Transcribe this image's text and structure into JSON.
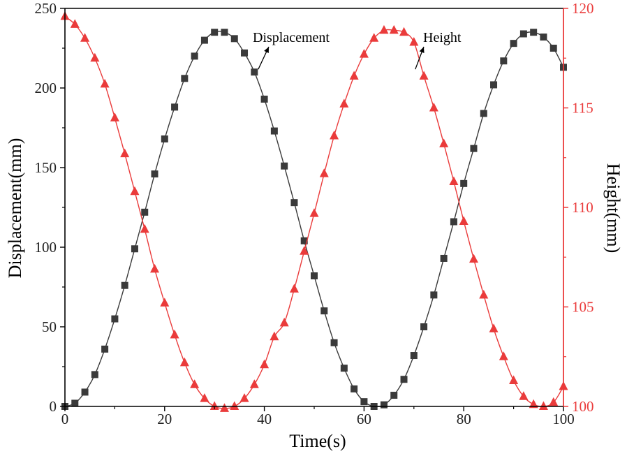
{
  "chart_data": {
    "type": "line",
    "xlabel": "Time(s)",
    "ylabel_left": "Displacement(mm)",
    "ylabel_right": "Height(mm)",
    "xlim": [
      0,
      100
    ],
    "ylim_left": [
      0,
      250
    ],
    "ylim_right": [
      100,
      120
    ],
    "xticks": [
      0,
      20,
      40,
      60,
      80,
      100
    ],
    "yticks_left": [
      0,
      50,
      100,
      150,
      200,
      250
    ],
    "yticks_right": [
      100,
      105,
      110,
      115,
      120
    ],
    "grid": false,
    "annotations": [
      {
        "text": "Displacement",
        "arrow_to": {
          "x": 38.5,
          "y": 210
        }
      },
      {
        "text": "Height",
        "arrow_to_right_axis": {
          "x": 70,
          "y": 116.8
        }
      }
    ],
    "series": [
      {
        "name": "Displacement",
        "axis": "left",
        "color": "#3a3a3a",
        "marker": "square",
        "x": [
          0,
          2,
          4,
          6,
          8,
          10,
          12,
          14,
          16,
          18,
          20,
          22,
          24,
          26,
          28,
          30,
          32,
          34,
          36,
          38,
          40,
          42,
          44,
          46,
          48,
          50,
          52,
          54,
          56,
          58,
          60,
          62,
          64,
          66,
          68,
          70,
          72,
          74,
          76,
          78,
          80,
          82,
          84,
          86,
          88,
          90,
          92,
          94,
          96,
          98,
          100
        ],
        "values": [
          0,
          2,
          9,
          20,
          36,
          55,
          76,
          99,
          122,
          146,
          168,
          188,
          206,
          220,
          230,
          235,
          235,
          231,
          222,
          210,
          193,
          173,
          151,
          128,
          104,
          82,
          60,
          40,
          24,
          11,
          3,
          0,
          1,
          7,
          17,
          32,
          50,
          70,
          93,
          116,
          140,
          162,
          184,
          202,
          217,
          228,
          234,
          235,
          232,
          225,
          213
        ]
      },
      {
        "name": "Height",
        "axis": "right",
        "color": "#ea3b3b",
        "marker": "triangle",
        "x": [
          0,
          2,
          4,
          6,
          8,
          10,
          12,
          14,
          16,
          18,
          20,
          22,
          24,
          26,
          28,
          30,
          32,
          34,
          36,
          38,
          40,
          42,
          44,
          46,
          48,
          50,
          52,
          54,
          56,
          58,
          60,
          62,
          64,
          66,
          68,
          70,
          72,
          74,
          76,
          78,
          80,
          82,
          84,
          86,
          88,
          90,
          92,
          94,
          96,
          98,
          100
        ],
        "values": [
          119.6,
          119.2,
          118.5,
          117.5,
          116.2,
          114.5,
          112.7,
          110.8,
          108.9,
          106.9,
          105.2,
          103.6,
          102.2,
          101.1,
          100.4,
          100.0,
          99.9,
          100.0,
          100.4,
          101.1,
          102.1,
          103.5,
          104.2,
          105.9,
          107.8,
          109.7,
          111.7,
          113.6,
          115.2,
          116.6,
          117.7,
          118.5,
          118.9,
          118.9,
          118.8,
          118.3,
          116.6,
          115.0,
          113.2,
          111.3,
          109.3,
          107.4,
          105.6,
          103.9,
          102.5,
          101.3,
          100.5,
          100.1,
          100.0,
          100.2,
          101.0
        ]
      }
    ]
  }
}
